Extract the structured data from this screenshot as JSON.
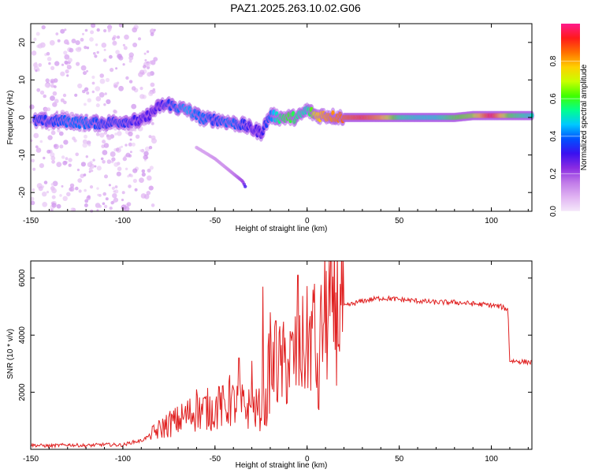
{
  "title": "PAZ1.2025.263.10.02.G06",
  "colors": {
    "snr_line": "#e02020",
    "axis": "#000000",
    "background": "#ffffff"
  },
  "chart_data": [
    {
      "type": "heatmap",
      "name": "spectrogram",
      "xlabel": "Height of straight line (km)",
      "ylabel": "Frequency (Hz)",
      "xlim": [
        -150,
        122
      ],
      "ylim": [
        -25,
        25
      ],
      "xticks": [
        -150,
        -100,
        -50,
        0,
        50,
        100
      ],
      "xtick_labels": [
        "-150",
        "-100",
        "-50",
        "0",
        "50",
        "100"
      ],
      "yticks": [
        -20,
        -10,
        0,
        10,
        20
      ],
      "ytick_labels": [
        "-20",
        "-10",
        "0",
        "10",
        "20"
      ],
      "colorbar": {
        "label": "Normalized spectral amplitude",
        "range": [
          0,
          1
        ],
        "ticks": [
          0.0,
          0.2,
          0.4,
          0.6,
          0.8
        ],
        "tick_labels": [
          "0.0",
          "0.2",
          "0.4",
          "0.6",
          "0.8"
        ],
        "colormap": [
          "#f5e8fa",
          "#e0b3f2",
          "#c07ae8",
          "#8a2be2",
          "#3a10f0",
          "#0050ff",
          "#00c8ff",
          "#00ff90",
          "#40ff00",
          "#c8ff00",
          "#ffd000",
          "#ff7000",
          "#ff1a1a",
          "#ff1a8c"
        ]
      },
      "ridge": {
        "description": "dominant frequency track",
        "x": [
          -140,
          -130,
          -120,
          -110,
          -100,
          -90,
          -80,
          -75,
          -70,
          -65,
          -60,
          -55,
          -50,
          -45,
          -40,
          -35,
          -30,
          -25,
          -20,
          -15,
          -10,
          -5,
          0,
          5,
          10,
          20,
          30,
          40,
          50,
          60,
          70,
          80,
          90,
          100,
          110,
          122
        ],
        "freq": [
          -1,
          -1,
          -1.5,
          -1.5,
          -1,
          -1,
          3,
          3.5,
          2.5,
          2,
          0.5,
          -0.5,
          -0.5,
          -1,
          -1.5,
          -2,
          -3,
          -4,
          0.5,
          0,
          0,
          0,
          2,
          0.5,
          0.5,
          0,
          0,
          0,
          0,
          0,
          0,
          0,
          0.5,
          0.5,
          0.5,
          0.5
        ],
        "amplitude": [
          0.35,
          0.4,
          0.4,
          0.35,
          0.35,
          0.3,
          0.3,
          0.35,
          0.4,
          0.45,
          0.4,
          0.4,
          0.35,
          0.4,
          0.4,
          0.35,
          0.3,
          0.3,
          0.4,
          0.55,
          0.6,
          0.55,
          0.5,
          0.75,
          0.8,
          0.85,
          0.9,
          0.8,
          0.55,
          0.5,
          0.5,
          0.6,
          0.65,
          0.95,
          0.6,
          0.5
        ]
      },
      "secondary_track": {
        "description": "faint descending branch",
        "x": [
          -60,
          -55,
          -50,
          -45,
          -40,
          -35,
          -33
        ],
        "freq": [
          -8,
          -9.5,
          -11,
          -13,
          -15,
          -17,
          -19
        ],
        "amplitude": [
          0.1,
          0.1,
          0.12,
          0.12,
          0.15,
          0.2,
          0.35
        ]
      },
      "noise_region": {
        "x_start": -150,
        "x_end": -82,
        "freq_range": [
          -25,
          25
        ],
        "amplitude": 0.1
      }
    },
    {
      "type": "line",
      "name": "snr",
      "xlabel": "Height of straight line (km)",
      "ylabel": "SNR (10 * v/v)",
      "xlim": [
        -150,
        122
      ],
      "ylim": [
        0,
        6600
      ],
      "xticks": [
        -150,
        -100,
        -50,
        0,
        50,
        100
      ],
      "xtick_labels": [
        "-150",
        "-100",
        "-50",
        "0",
        "50",
        "100"
      ],
      "yticks": [
        2000,
        4000,
        6000
      ],
      "ytick_labels": [
        "2000",
        "4000",
        "6000"
      ],
      "series": [
        {
          "name": "SNR",
          "x": [
            -150,
            -140,
            -130,
            -120,
            -110,
            -100,
            -95,
            -90,
            -85,
            -80,
            -75,
            -70,
            -65,
            -60,
            -55,
            -50,
            -45,
            -40,
            -35,
            -30,
            -25,
            -22,
            -21,
            -20,
            -15,
            -10,
            -5,
            0,
            3,
            5,
            6,
            7,
            8,
            10,
            12,
            15,
            20,
            25,
            30,
            35,
            40,
            45,
            50,
            60,
            70,
            80,
            90,
            100,
            105,
            109,
            110,
            111,
            115,
            122
          ],
          "y": [
            150,
            120,
            160,
            130,
            170,
            150,
            250,
            300,
            500,
            700,
            900,
            1000,
            1200,
            1300,
            1400,
            1400,
            1500,
            1600,
            1500,
            1400,
            1400,
            1500,
            2600,
            2800,
            2900,
            3000,
            3300,
            3700,
            4000,
            3300,
            1500,
            3600,
            4200,
            4600,
            4700,
            4900,
            5000,
            5100,
            5200,
            5250,
            5300,
            5280,
            5250,
            5200,
            5150,
            5150,
            5100,
            5050,
            5000,
            4900,
            3100,
            3100,
            3080,
            3050
          ],
          "peaks": [
            {
              "x": -60,
              "y": 2100
            },
            {
              "x": -48,
              "y": 2200
            },
            {
              "x": -42,
              "y": 2600
            },
            {
              "x": -37,
              "y": 3200
            },
            {
              "x": -30,
              "y": 3100
            },
            {
              "x": -24,
              "y": 5700
            },
            {
              "x": -20,
              "y": 4800
            },
            {
              "x": -17,
              "y": 4500
            },
            {
              "x": -5,
              "y": 6100
            },
            {
              "x": 4,
              "y": 5800
            },
            {
              "x": 8,
              "y": 4600
            },
            {
              "x": 12,
              "y": 6600
            },
            {
              "x": 14,
              "y": 6050
            }
          ]
        }
      ]
    }
  ]
}
